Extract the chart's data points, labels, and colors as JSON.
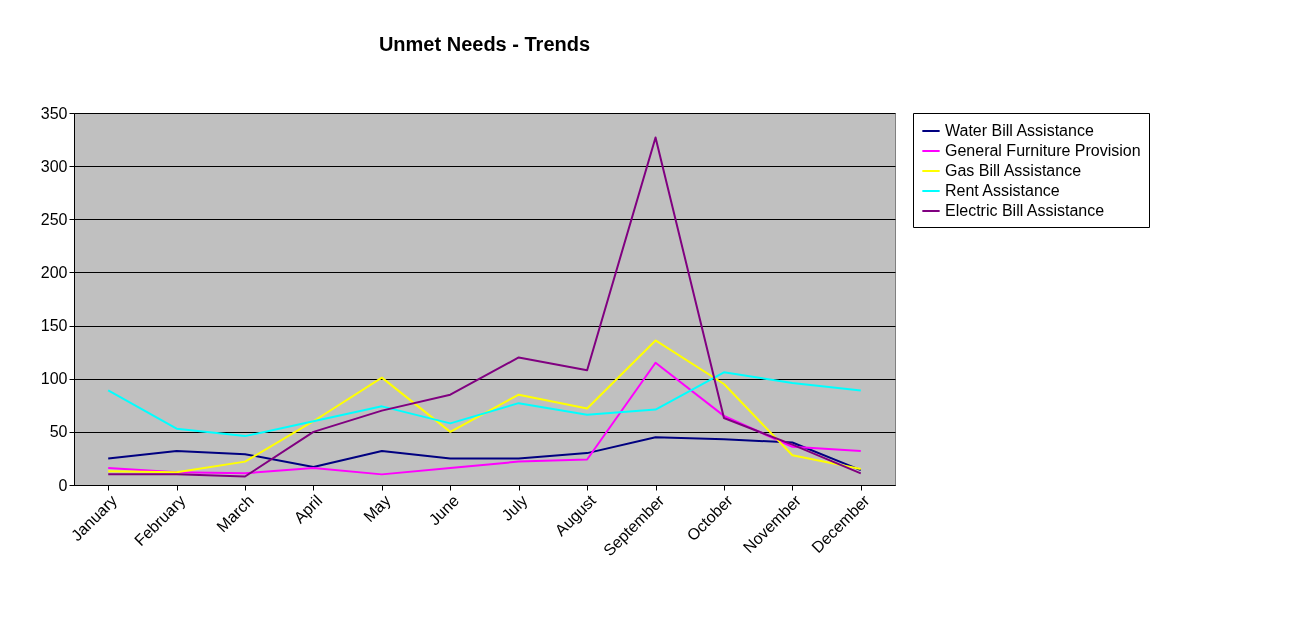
{
  "chart_data": {
    "type": "line",
    "title": "Unmet Needs - Trends",
    "categories": [
      "January",
      "February",
      "March",
      "April",
      "May",
      "June",
      "July",
      "August",
      "September",
      "October",
      "November",
      "December"
    ],
    "series": [
      {
        "name": "Water Bill Assistance",
        "color": "#000080",
        "values": [
          25,
          32,
          29,
          17,
          32,
          25,
          25,
          30,
          45,
          43,
          40,
          14
        ]
      },
      {
        "name": "General Furniture Provision",
        "color": "#ff00ff",
        "values": [
          16,
          12,
          11,
          16,
          10,
          16,
          22,
          24,
          115,
          65,
          36,
          32
        ]
      },
      {
        "name": "Gas Bill Assistance",
        "color": "#ffff00",
        "values": [
          13,
          12,
          22,
          60,
          101,
          50,
          85,
          72,
          136,
          95,
          28,
          15
        ]
      },
      {
        "name": "Rent Assistance",
        "color": "#00ffff",
        "values": [
          89,
          53,
          46,
          60,
          74,
          58,
          77,
          66,
          71,
          106,
          96,
          89
        ]
      },
      {
        "name": "Electric Bill Assistance",
        "color": "#800080",
        "values": [
          10,
          10,
          8,
          50,
          70,
          85,
          120,
          108,
          327,
          63,
          38,
          11
        ]
      }
    ],
    "ylim": [
      0,
      350
    ],
    "yticks": [
      0,
      50,
      100,
      150,
      200,
      250,
      300,
      350
    ],
    "grid": "y",
    "legend": "right",
    "marker": "none",
    "line_style": "solid"
  }
}
